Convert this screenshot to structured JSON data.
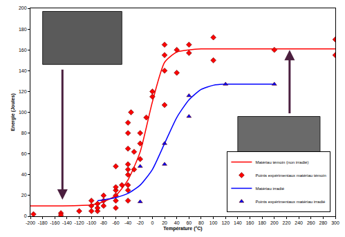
{
  "chart_data": {
    "type": "scatter",
    "x_label": "Température (°C)",
    "y_label": "Energie (Joules)",
    "xlim": [
      -200,
      300
    ],
    "xticks": [
      -200,
      -180,
      -160,
      -140,
      -120,
      -100,
      -80,
      -60,
      -40,
      -20,
      0,
      20,
      40,
      60,
      80,
      100,
      120,
      140,
      160,
      180,
      200,
      220,
      240,
      260,
      280,
      300
    ],
    "ylim": [
      0,
      200
    ],
    "yticks": [
      0,
      20,
      40,
      60,
      80,
      100,
      120,
      140,
      160,
      180,
      200
    ],
    "grid": false,
    "legend": "bottom right",
    "series": [
      {
        "name": "Matériau témoin (non irradié)",
        "type": "line",
        "line_style": "solid",
        "color": "#ff0000",
        "x": [
          -200,
          -150,
          -100,
          -80,
          -60,
          -40,
          -20,
          0,
          20,
          40,
          60,
          80,
          100,
          200,
          300
        ],
        "values": [
          10,
          10,
          11,
          14,
          20,
          35,
          62,
          110,
          148,
          158,
          160,
          161,
          161,
          161,
          161
        ]
      },
      {
        "name": "Points expérimentaux matériau témoin",
        "type": "scatter",
        "marker": "diamond",
        "color": "#ff0000",
        "x": [
          -195,
          -150,
          -150,
          -120,
          -100,
          -100,
          -100,
          -90,
          -90,
          -90,
          -80,
          -80,
          -80,
          -60,
          -60,
          -60,
          -60,
          -60,
          -60,
          -50,
          -40,
          -40,
          -40,
          -40,
          -40,
          -40,
          -40,
          -40,
          -40,
          -35,
          -30,
          -30,
          -20,
          -20,
          -20,
          -10,
          0,
          0,
          20,
          20,
          20,
          20,
          40,
          40,
          60,
          60,
          100,
          100,
          200,
          300,
          300
        ],
        "values": [
          2,
          3,
          1,
          5,
          5,
          10,
          15,
          5,
          8,
          12,
          10,
          15,
          20,
          8,
          15,
          20,
          25,
          28,
          48,
          30,
          15,
          25,
          30,
          40,
          45,
          50,
          65,
          80,
          90,
          100,
          62,
          45,
          55,
          70,
          80,
          95,
          115,
          120,
          107,
          140,
          155,
          165,
          138,
          160,
          157,
          165,
          150,
          172,
          160,
          155,
          170
        ]
      },
      {
        "name": "Matériau irradié",
        "type": "line",
        "line_style": "solid",
        "color": "#0000ff",
        "x": [
          -90,
          -60,
          -40,
          -20,
          0,
          20,
          40,
          60,
          80,
          100,
          120,
          200
        ],
        "values": [
          15,
          18,
          22,
          30,
          45,
          70,
          95,
          112,
          122,
          126,
          127,
          127
        ]
      },
      {
        "name": "Points expérimentaux matériau irradié",
        "type": "scatter",
        "marker": "triangle-up",
        "color": "#0000ff",
        "x": [
          -20,
          -20,
          20,
          20,
          60,
          60,
          120,
          200
        ],
        "values": [
          48,
          14,
          50,
          70,
          96,
          116,
          127,
          127
        ]
      }
    ]
  }
}
